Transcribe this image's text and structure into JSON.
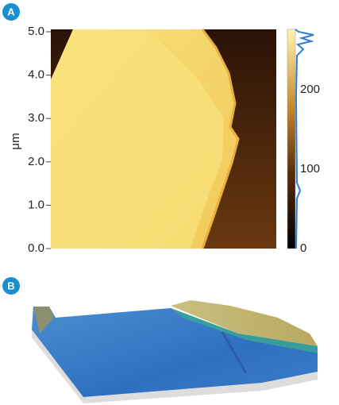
{
  "panels": [
    {
      "label": "A",
      "y_axis_label": "μm",
      "y_ticks": [
        "5.0",
        "4.0",
        "3.0",
        "2.0",
        "1.0",
        "0.0"
      ],
      "colorbar_ticks": [
        "200",
        "100",
        "0"
      ]
    },
    {
      "label": "B"
    }
  ]
}
